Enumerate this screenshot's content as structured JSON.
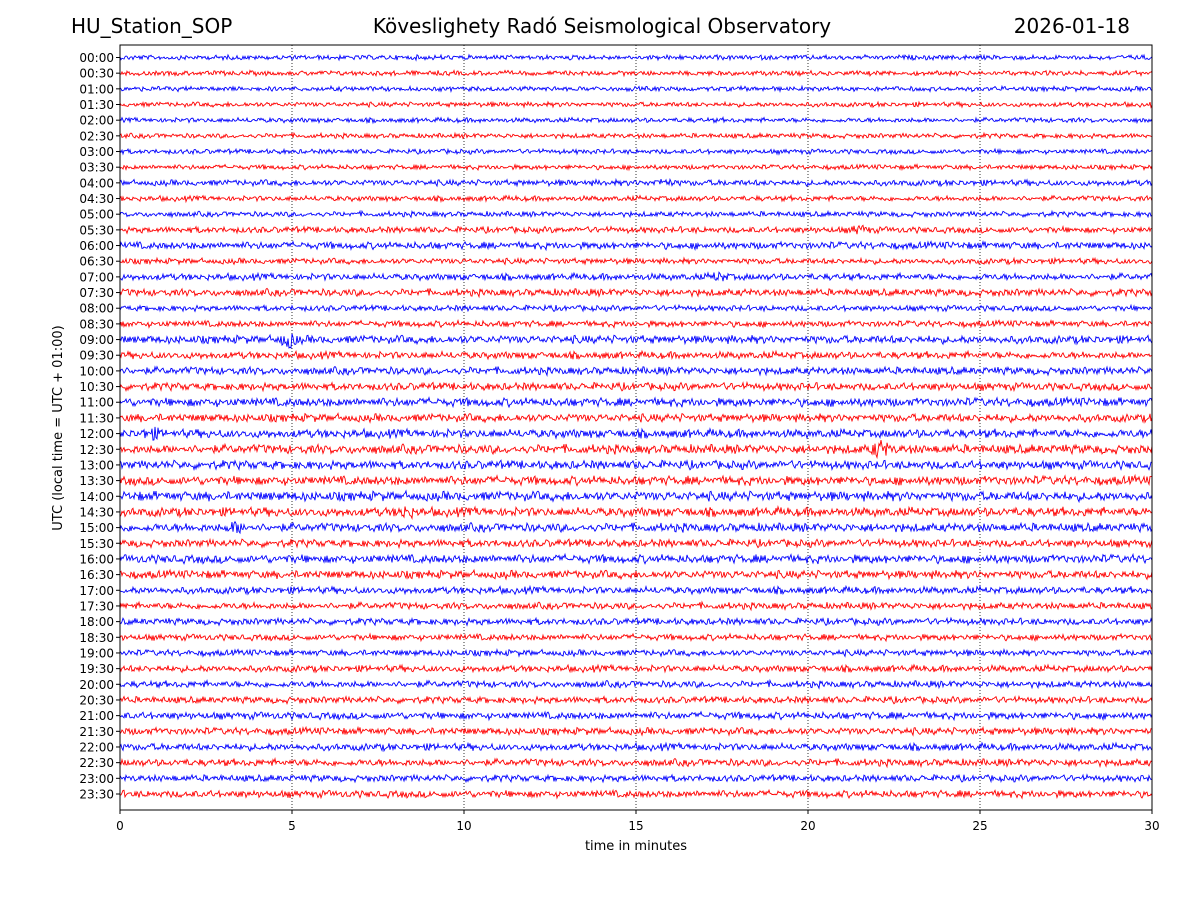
{
  "header": {
    "station": "HU_Station_SOP",
    "observatory": "Köveslighety Radó Seismological Observatory",
    "date": "2026-01-18"
  },
  "chart_data": {
    "type": "line",
    "subtype": "helicorder",
    "xlabel": "time in minutes",
    "ylabel": "UTC (local time = UTC + 01:00)",
    "xlim": [
      0,
      30
    ],
    "xticks": [
      0,
      5,
      10,
      15,
      20,
      25,
      30
    ],
    "gridlines_x": [
      5,
      10,
      15,
      20,
      25
    ],
    "grid": "vertical dotted",
    "row_labels": [
      "00:00",
      "00:30",
      "01:00",
      "01:30",
      "02:00",
      "02:30",
      "03:00",
      "03:30",
      "04:00",
      "04:30",
      "05:00",
      "05:30",
      "06:00",
      "06:30",
      "07:00",
      "07:30",
      "08:00",
      "08:30",
      "09:00",
      "09:30",
      "10:00",
      "10:30",
      "11:00",
      "11:30",
      "12:00",
      "12:30",
      "13:00",
      "13:30",
      "14:00",
      "14:30",
      "15:00",
      "15:30",
      "16:00",
      "16:30",
      "17:00",
      "17:30",
      "18:00",
      "18:30",
      "19:00",
      "19:30",
      "20:00",
      "20:30",
      "21:00",
      "21:30",
      "22:00",
      "22:30",
      "23:00",
      "23:30"
    ],
    "row_amplitude": [
      2.0,
      2.0,
      2.0,
      2.0,
      2.0,
      2.0,
      2.0,
      2.0,
      2.5,
      2.2,
      2.2,
      2.6,
      3.0,
      2.4,
      2.8,
      3.0,
      2.4,
      2.6,
      3.4,
      3.0,
      3.2,
      3.2,
      3.6,
      3.4,
      3.6,
      3.8,
      3.6,
      3.8,
      4.0,
      3.8,
      3.6,
      3.2,
      3.6,
      3.4,
      3.0,
      2.8,
      2.8,
      2.6,
      2.6,
      2.8,
      2.8,
      2.8,
      3.0,
      3.0,
      3.0,
      3.0,
      2.8,
      3.0
    ],
    "events": [
      {
        "row": "09:00",
        "minute": 4.9,
        "amplitude": 3.0
      },
      {
        "row": "12:00",
        "minute": 0.9,
        "amplitude": 2.0
      },
      {
        "row": "12:30",
        "minute": 22.1,
        "amplitude": 3.5
      },
      {
        "row": "14:30",
        "minute": 8.3,
        "amplitude": 2.0
      },
      {
        "row": "15:00",
        "minute": 3.4,
        "amplitude": 2.0
      },
      {
        "row": "04:00",
        "minute": 15.8,
        "amplitude": 1.5
      },
      {
        "row": "07:00",
        "minute": 17.4,
        "amplitude": 1.5
      },
      {
        "row": "05:30",
        "minute": 21.5,
        "amplitude": 1.5
      }
    ],
    "colors": [
      "#0000ff",
      "#ff0000"
    ]
  }
}
